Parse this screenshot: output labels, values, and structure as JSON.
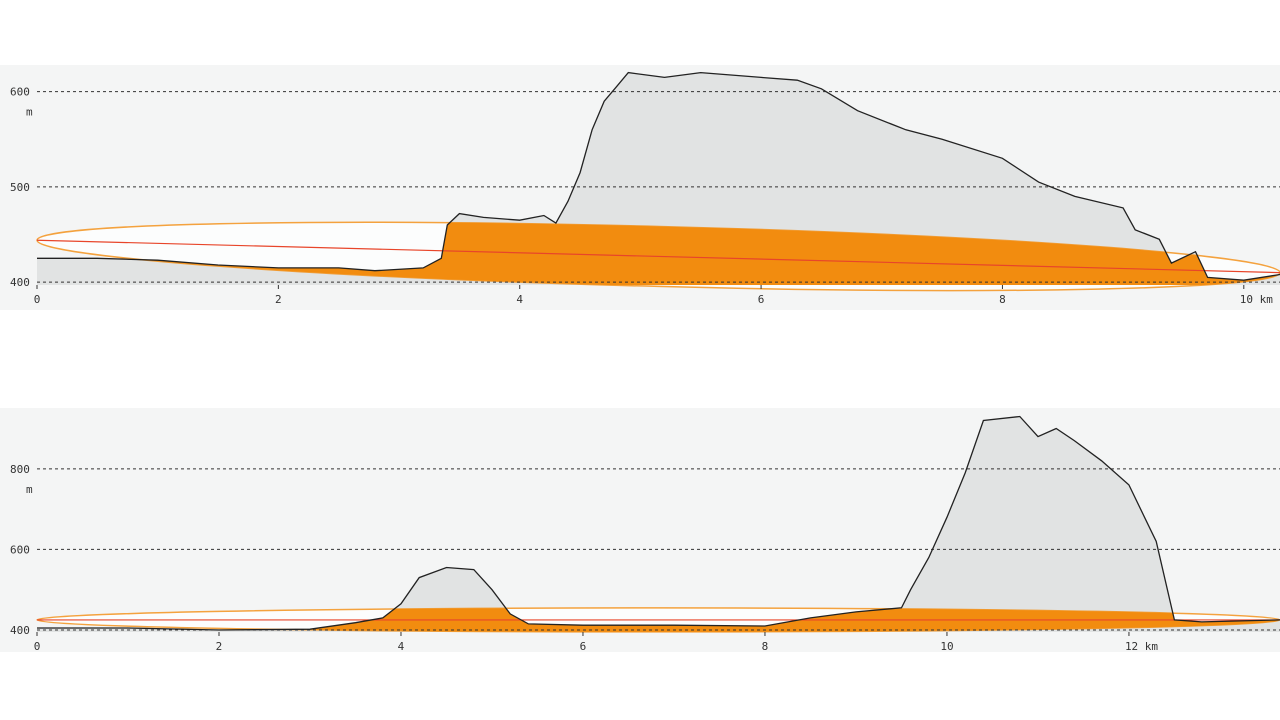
{
  "chart_data": [
    {
      "type": "area",
      "y_unit": "m",
      "color": "#e1e3e3",
      "line_color": "#222222",
      "fresnel_color": "#f28c0f",
      "los_color": "#e8452a",
      "x": [
        0,
        0.5,
        1.0,
        1.5,
        2.0,
        2.5,
        2.8,
        3.2,
        3.35,
        3.4,
        3.5,
        3.7,
        4.0,
        4.2,
        4.3,
        4.4,
        4.5,
        4.6,
        4.7,
        4.8,
        4.9,
        5.2,
        5.5,
        6.0,
        6.3,
        6.5,
        6.8,
        7.2,
        7.5,
        8.0,
        8.3,
        8.6,
        9.0,
        9.1,
        9.3,
        9.4,
        9.6,
        9.7,
        10.0,
        10.3
      ],
      "values": [
        425,
        425,
        423,
        418,
        415,
        415,
        412,
        415,
        425,
        460,
        472,
        468,
        465,
        470,
        462,
        485,
        515,
        560,
        590,
        605,
        620,
        615,
        620,
        615,
        612,
        603,
        580,
        560,
        550,
        530,
        505,
        490,
        478,
        455,
        445,
        420,
        432,
        405,
        402,
        408
      ],
      "line_of_sight": {
        "x": [
          0,
          10.3
        ],
        "values": [
          444,
          410
        ]
      },
      "xlim": [
        0,
        10.3
      ],
      "ylim": [
        397,
        628
      ],
      "xticks": [
        0,
        2,
        4,
        6,
        8,
        {
          "value": 10,
          "label": "10 km"
        }
      ],
      "yticks": [
        400,
        500,
        600
      ]
    },
    {
      "type": "area",
      "y_unit": "m",
      "color": "#e1e3e3",
      "line_color": "#222222",
      "fresnel_color": "#f28c0f",
      "los_color": "#e8452a",
      "x": [
        0,
        1,
        2,
        3,
        3.5,
        3.8,
        4.0,
        4.2,
        4.5,
        4.8,
        5.0,
        5.2,
        5.4,
        6,
        7,
        8,
        8.5,
        9,
        9.5,
        9.6,
        9.8,
        10.0,
        10.2,
        10.4,
        10.8,
        11.0,
        11.2,
        11.4,
        11.7,
        12.0,
        12.3,
        12.5,
        12.8,
        13.66
      ],
      "values": [
        405,
        405,
        400,
        402,
        418,
        430,
        465,
        530,
        555,
        550,
        500,
        440,
        415,
        412,
        412,
        410,
        430,
        445,
        455,
        500,
        580,
        680,
        790,
        920,
        930,
        880,
        900,
        870,
        820,
        760,
        620,
        425,
        420,
        425
      ],
      "line_of_sight": {
        "x": [
          0,
          13.66
        ],
        "values": [
          425,
          425
        ]
      },
      "xlim": [
        0,
        13.66
      ],
      "ylim": [
        395,
        951
      ],
      "xticks": [
        0,
        2,
        4,
        6,
        8,
        10,
        {
          "value": 12,
          "label": "12 km"
        }
      ],
      "yticks": [
        400,
        600,
        800
      ]
    }
  ]
}
